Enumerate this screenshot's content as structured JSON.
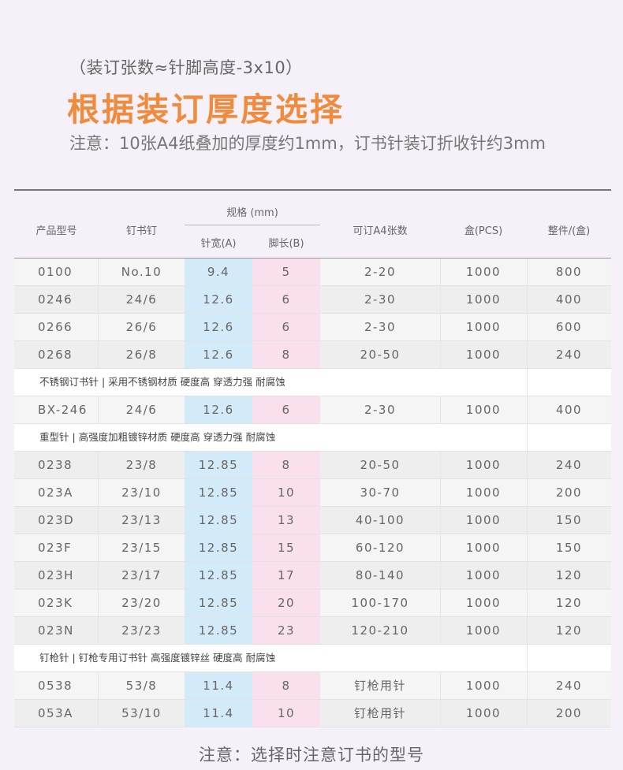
{
  "header": {
    "formula": "（装订张数≈针脚高度-3x10）",
    "title": "根据装订厚度选择",
    "note": "注意：10张A4纸叠加的厚度约1mm，订书针装订折收针约3mm"
  },
  "columns": {
    "model": "产品型号",
    "nail": "钉书钉",
    "spec": "规格 (mm)",
    "width": "针宽(A)",
    "leg": "脚长(B)",
    "sheets": "可订A4张数",
    "box": "盒(PCS)",
    "carton": "整件/(盒)"
  },
  "colors": {
    "title": "#f08a3c",
    "width_column": "#d3ebf9",
    "leg_column": "#fadfec"
  },
  "rows": [
    {
      "type": "data",
      "model": "0100",
      "nail": "No.10",
      "a": "9.4",
      "b": "5",
      "sheets": "2-20",
      "box": "1000",
      "carton": "800"
    },
    {
      "type": "data",
      "model": "0246",
      "nail": "24/6",
      "a": "12.6",
      "b": "6",
      "sheets": "2-30",
      "box": "1000",
      "carton": "400"
    },
    {
      "type": "data",
      "model": "0266",
      "nail": "26/6",
      "a": "12.6",
      "b": "6",
      "sheets": "2-30",
      "box": "1000",
      "carton": "600"
    },
    {
      "type": "data",
      "model": "0268",
      "nail": "26/8",
      "a": "12.6",
      "b": "8",
      "sheets": "20-50",
      "box": "1000",
      "carton": "240"
    },
    {
      "type": "section",
      "text": "不锈钢订书针 | 采用不锈钢材质 硬度高 穿透力强  耐腐蚀"
    },
    {
      "type": "data",
      "model": "BX-246",
      "nail": "24/6",
      "a": "12.6",
      "b": "6",
      "sheets": "2-30",
      "box": "1000",
      "carton": "400"
    },
    {
      "type": "section",
      "text": "重型针 | 高强度加粗镀锌材质 硬度高 穿透力强  耐腐蚀"
    },
    {
      "type": "data",
      "model": "0238",
      "nail": "23/8",
      "a": "12.85",
      "b": "8",
      "sheets": "20-50",
      "box": "1000",
      "carton": "240"
    },
    {
      "type": "data",
      "model": "023A",
      "nail": "23/10",
      "a": "12.85",
      "b": "10",
      "sheets": "30-70",
      "box": "1000",
      "carton": "200"
    },
    {
      "type": "data",
      "model": "023D",
      "nail": "23/13",
      "a": "12.85",
      "b": "13",
      "sheets": "40-100",
      "box": "1000",
      "carton": "150"
    },
    {
      "type": "data",
      "model": "023F",
      "nail": "23/15",
      "a": "12.85",
      "b": "15",
      "sheets": "60-120",
      "box": "1000",
      "carton": "150"
    },
    {
      "type": "data",
      "model": "023H",
      "nail": "23/17",
      "a": "12.85",
      "b": "17",
      "sheets": "80-140",
      "box": "1000",
      "carton": "120"
    },
    {
      "type": "data",
      "model": "023K",
      "nail": "23/20",
      "a": "12.85",
      "b": "20",
      "sheets": "100-170",
      "box": "1000",
      "carton": "120"
    },
    {
      "type": "data",
      "model": "023N",
      "nail": "23/23",
      "a": "12.85",
      "b": "23",
      "sheets": "120-210",
      "box": "1000",
      "carton": "120"
    },
    {
      "type": "section",
      "text": "钉枪针 | 钉枪专用订书针 高强度镀锌丝 硬度高 耐腐蚀"
    },
    {
      "type": "data",
      "model": "0538",
      "nail": "53/8",
      "a": "11.4",
      "b": "8",
      "sheets": "钉枪用针",
      "box": "1000",
      "carton": "240"
    },
    {
      "type": "data",
      "model": "053A",
      "nail": "53/10",
      "a": "11.4",
      "b": "10",
      "sheets": "钉枪用针",
      "box": "1000",
      "carton": "200"
    }
  ],
  "footer": {
    "note": "注意：选择时注意订书的型号"
  }
}
